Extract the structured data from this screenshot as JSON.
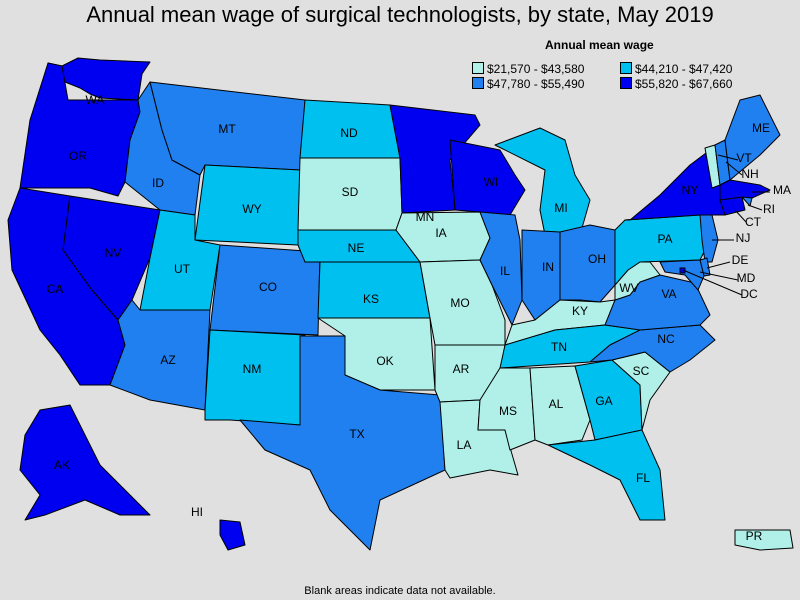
{
  "title": "Annual mean wage of surgical technologists, by state, May 2019",
  "legend": {
    "title": "Annual mean wage",
    "items": [
      {
        "range": "$21,570 - $43,580",
        "color": "#b0f0e8"
      },
      {
        "range": "$44,210 - $47,420",
        "color": "#00c0f0"
      },
      {
        "range": "$47,780 - $55,490",
        "color": "#2080f0"
      },
      {
        "range": "$55,820 - $67,660",
        "color": "#0000f0"
      }
    ]
  },
  "footer": "Blank areas indicate data not available.",
  "states": [
    {
      "abbr": "WA",
      "tier": 3
    },
    {
      "abbr": "OR",
      "tier": 3
    },
    {
      "abbr": "CA",
      "tier": 3
    },
    {
      "abbr": "NV",
      "tier": 3
    },
    {
      "abbr": "ID",
      "tier": 2
    },
    {
      "abbr": "MT",
      "tier": 2
    },
    {
      "abbr": "WY",
      "tier": 1
    },
    {
      "abbr": "UT",
      "tier": 1
    },
    {
      "abbr": "AZ",
      "tier": 2
    },
    {
      "abbr": "CO",
      "tier": 2
    },
    {
      "abbr": "NM",
      "tier": 1
    },
    {
      "abbr": "ND",
      "tier": 1
    },
    {
      "abbr": "SD",
      "tier": 0
    },
    {
      "abbr": "NE",
      "tier": 1
    },
    {
      "abbr": "KS",
      "tier": 1
    },
    {
      "abbr": "OK",
      "tier": 0
    },
    {
      "abbr": "TX",
      "tier": 2
    },
    {
      "abbr": "MN",
      "tier": 3
    },
    {
      "abbr": "IA",
      "tier": 0
    },
    {
      "abbr": "MO",
      "tier": 0
    },
    {
      "abbr": "AR",
      "tier": 0
    },
    {
      "abbr": "LA",
      "tier": 0
    },
    {
      "abbr": "WI",
      "tier": 3
    },
    {
      "abbr": "IL",
      "tier": 2
    },
    {
      "abbr": "MI",
      "tier": 1
    },
    {
      "abbr": "IN",
      "tier": 2
    },
    {
      "abbr": "OH",
      "tier": 2
    },
    {
      "abbr": "KY",
      "tier": 0
    },
    {
      "abbr": "TN",
      "tier": 1
    },
    {
      "abbr": "MS",
      "tier": 0
    },
    {
      "abbr": "AL",
      "tier": 0
    },
    {
      "abbr": "GA",
      "tier": 1
    },
    {
      "abbr": "FL",
      "tier": 1
    },
    {
      "abbr": "SC",
      "tier": 0
    },
    {
      "abbr": "NC",
      "tier": 2
    },
    {
      "abbr": "VA",
      "tier": 2
    },
    {
      "abbr": "WV",
      "tier": 0
    },
    {
      "abbr": "PA",
      "tier": 1
    },
    {
      "abbr": "NY",
      "tier": 3
    },
    {
      "abbr": "VT",
      "tier": 0
    },
    {
      "abbr": "NH",
      "tier": 2
    },
    {
      "abbr": "ME",
      "tier": 2
    },
    {
      "abbr": "MA",
      "tier": 3
    },
    {
      "abbr": "RI",
      "tier": 2
    },
    {
      "abbr": "CT",
      "tier": 3
    },
    {
      "abbr": "NJ",
      "tier": 2
    },
    {
      "abbr": "DE",
      "tier": 2
    },
    {
      "abbr": "MD",
      "tier": 2
    },
    {
      "abbr": "DC",
      "tier": 3
    },
    {
      "abbr": "AK",
      "tier": 3
    },
    {
      "abbr": "HI",
      "tier": 3
    },
    {
      "abbr": "PR",
      "tier": 0
    }
  ]
}
